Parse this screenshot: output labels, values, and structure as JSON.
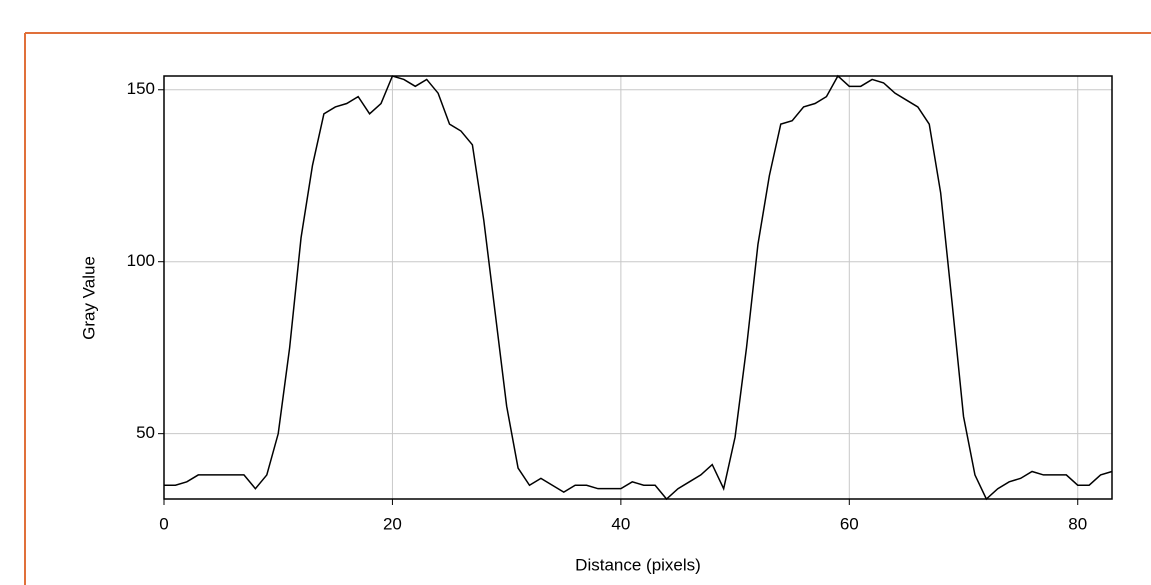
{
  "chart_data": {
    "type": "line",
    "x_label": "Distance (pixels)",
    "y_label": "Gray Value",
    "x": [
      0,
      1,
      2,
      3,
      4,
      5,
      6,
      7,
      8,
      9,
      10,
      11,
      12,
      13,
      14,
      15,
      16,
      17,
      18,
      19,
      20,
      21,
      22,
      23,
      24,
      25,
      26,
      27,
      28,
      29,
      30,
      31,
      32,
      33,
      34,
      35,
      36,
      37,
      38,
      39,
      40,
      41,
      42,
      43,
      44,
      45,
      46,
      47,
      48,
      49,
      50,
      51,
      52,
      53,
      54,
      55,
      56,
      57,
      58,
      59,
      60,
      61,
      62,
      63,
      64,
      65,
      66,
      67,
      68,
      69,
      70,
      71,
      72,
      73,
      74,
      75,
      76,
      77,
      78,
      79,
      80,
      81,
      82,
      83
    ],
    "values": [
      35,
      35,
      36,
      38,
      38,
      38,
      38,
      38,
      34,
      38,
      50,
      75,
      107,
      128,
      143,
      145,
      146,
      148,
      143,
      146,
      154,
      153,
      151,
      153,
      149,
      140,
      138,
      134,
      112,
      85,
      58,
      40,
      35,
      37,
      35,
      33,
      35,
      35,
      34,
      34,
      34,
      36,
      35,
      35,
      31,
      34,
      36,
      38,
      41,
      34,
      49,
      75,
      105,
      125,
      140,
      141,
      145,
      146,
      148,
      154,
      151,
      151,
      153,
      152,
      149,
      147,
      145,
      140,
      120,
      88,
      55,
      38,
      31,
      34,
      36,
      37,
      39,
      38,
      38,
      38,
      35,
      35,
      38,
      39
    ],
    "color": "#000000",
    "xlim": [
      0,
      83
    ],
    "ylim": [
      31,
      154
    ],
    "xticks": [
      0,
      20,
      40,
      60,
      80
    ],
    "yticks": [
      50,
      100,
      150
    ],
    "grid": true
  }
}
